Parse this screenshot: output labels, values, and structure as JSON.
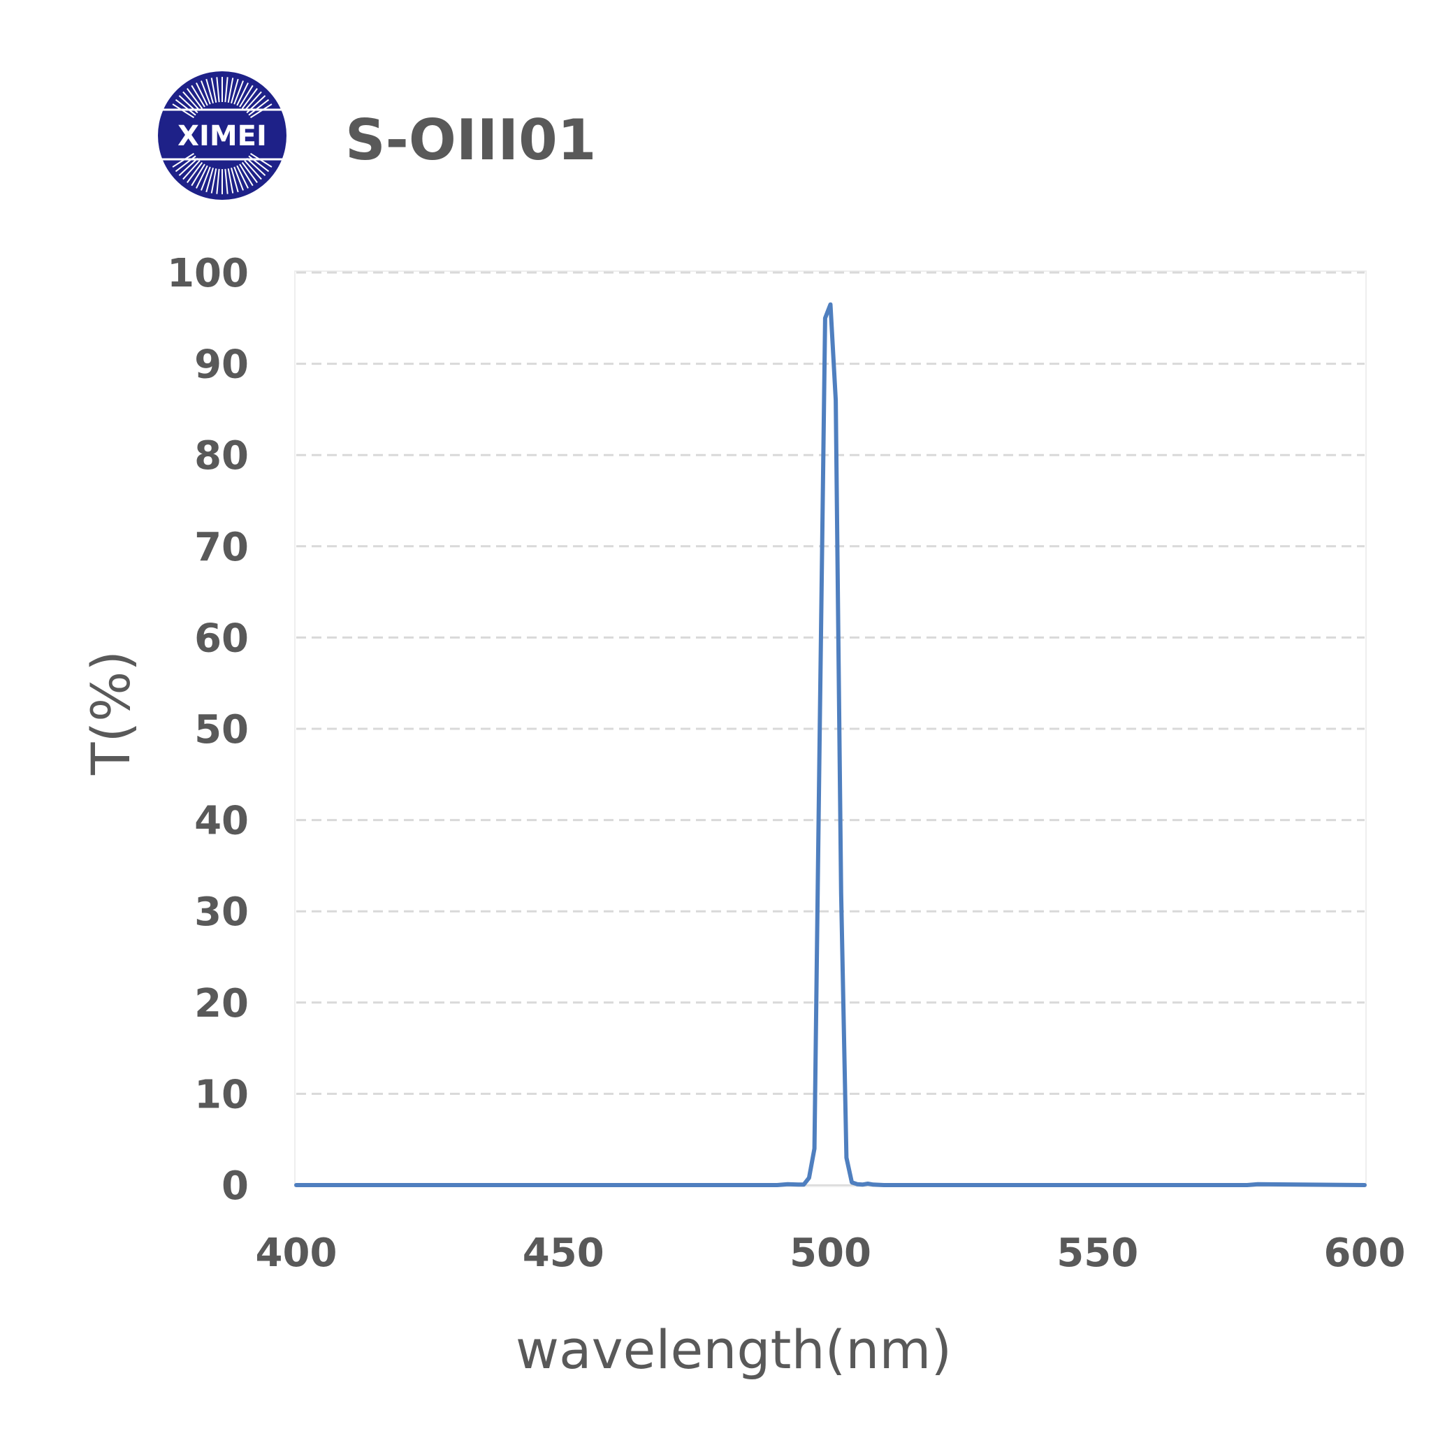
{
  "logo": {
    "text": "XIMEI",
    "color": "#1e2188"
  },
  "chart_data": {
    "type": "line",
    "title": "S-OIII01",
    "xlabel": "wavelength(nm)",
    "ylabel": "T(%)",
    "xlim": [
      400,
      600
    ],
    "ylim": [
      0,
      100
    ],
    "xticks": [
      400,
      450,
      500,
      550,
      600
    ],
    "yticks": [
      0,
      10,
      20,
      30,
      40,
      50,
      60,
      70,
      80,
      90,
      100
    ],
    "grid": true,
    "line_color": "#4f7fbf",
    "grid_color": "#d9d9d9",
    "text_color": "#595959",
    "series": [
      {
        "x": [
          400,
          450,
          490,
          492,
          494,
          495,
          496,
          497,
          498,
          499,
          500,
          501,
          502,
          503,
          504,
          505,
          506,
          507,
          508,
          510,
          520,
          550,
          578,
          580,
          600
        ],
        "y": [
          0,
          0,
          0,
          0.1,
          0.05,
          0.05,
          0.8,
          4,
          50,
          95,
          96.5,
          86,
          32,
          3,
          0.3,
          0.1,
          0.05,
          0.15,
          0.05,
          0,
          0,
          0,
          0,
          0.1,
          0
        ]
      }
    ]
  }
}
